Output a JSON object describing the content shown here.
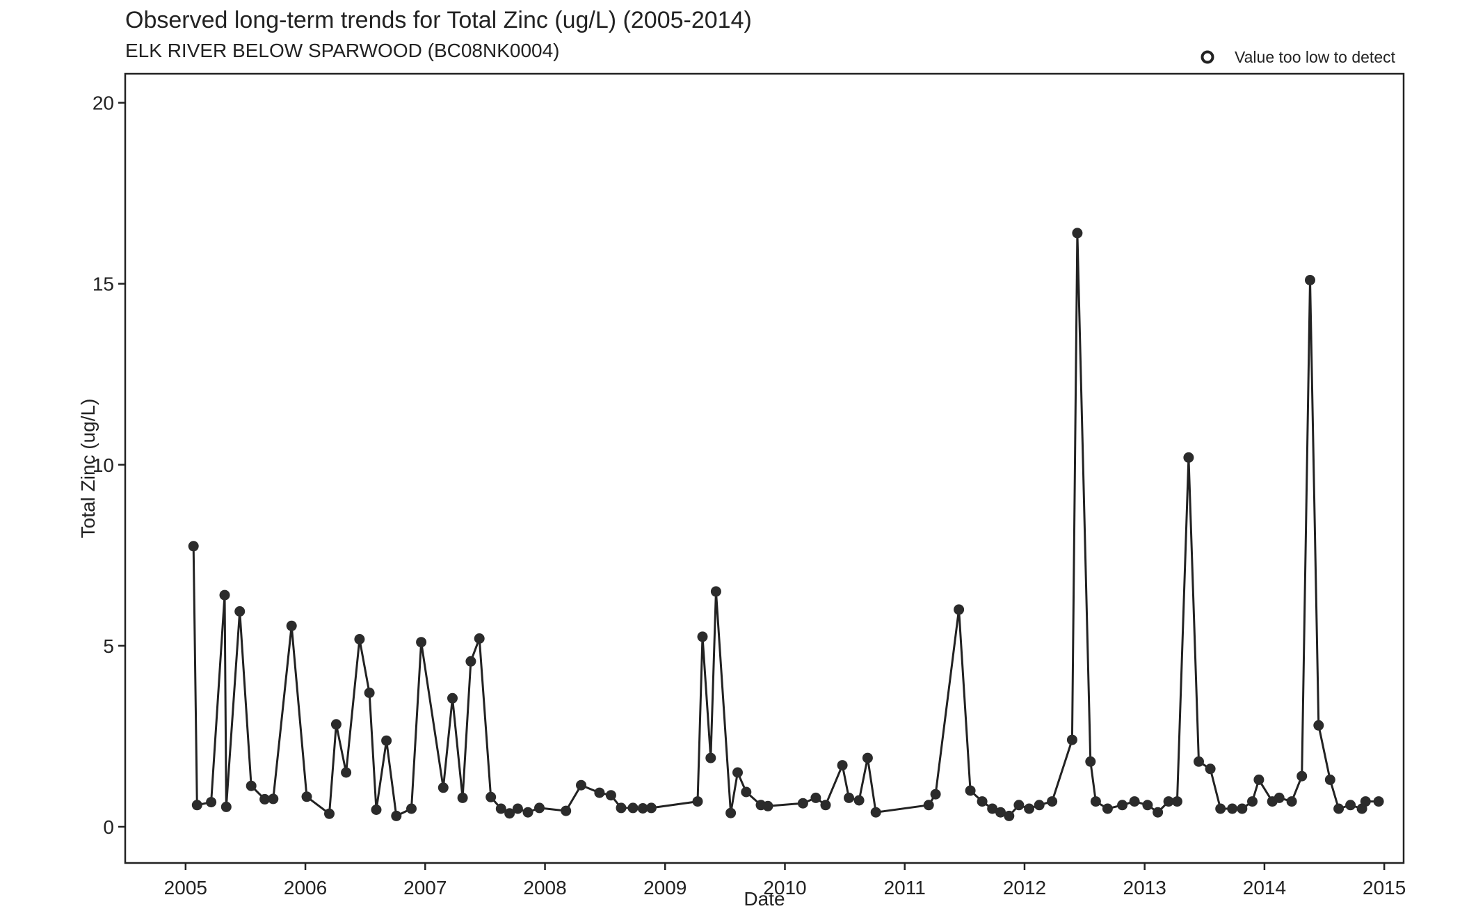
{
  "chart_data": {
    "type": "line",
    "title": "Observed long-term trends for Total Zinc (ug/L) (2005-2014)",
    "subtitle": "ELK RIVER BELOW SPARWOOD (BC08NK0004)",
    "xlabel": "Date",
    "ylabel": "Total Zinc (ug/L)",
    "x_axis_type": "date",
    "xlim": [
      "2004-07-01",
      "2015-03-01"
    ],
    "ylim": [
      -1,
      20.8
    ],
    "x_ticks": [
      "2005",
      "2006",
      "2007",
      "2008",
      "2009",
      "2010",
      "2011",
      "2012",
      "2013",
      "2014",
      "2015"
    ],
    "y_ticks": [
      "0",
      "5",
      "10",
      "15",
      "20"
    ],
    "grid": false,
    "legend": {
      "position": "top-right",
      "entries": [
        {
          "label": "Value too low to detect",
          "marker": "hollow-circle"
        }
      ]
    },
    "line_color": "#222222",
    "point_color": "#2b2b2b",
    "series": [
      {
        "x": [
          "2005-01-25",
          "2005-02-05",
          "2005-03-20",
          "2005-04-30",
          "2005-05-05",
          "2005-06-15",
          "2005-07-20",
          "2005-08-30",
          "2005-09-25",
          "2005-11-20",
          "2006-01-05",
          "2006-03-15",
          "2006-04-05",
          "2006-05-05",
          "2006-06-15",
          "2006-07-15",
          "2006-08-05",
          "2006-09-05",
          "2006-10-05",
          "2006-11-20",
          "2006-12-20",
          "2007-02-25",
          "2007-03-25",
          "2007-04-25",
          "2007-05-20",
          "2007-06-15",
          "2007-07-20",
          "2007-08-20",
          "2007-09-15",
          "2007-10-10",
          "2007-11-10",
          "2007-12-15",
          "2008-03-05",
          "2008-04-20",
          "2008-06-15",
          "2008-07-20",
          "2008-08-20",
          "2008-09-25",
          "2008-10-25",
          "2008-11-20",
          "2009-04-10",
          "2009-04-25",
          "2009-05-20",
          "2009-06-05",
          "2009-07-20",
          "2009-08-10",
          "2009-09-05",
          "2009-10-20",
          "2009-11-10",
          "2010-02-25",
          "2010-04-05",
          "2010-05-05",
          "2010-06-25",
          "2010-07-15",
          "2010-08-15",
          "2010-09-10",
          "2010-10-05",
          "2011-03-15",
          "2011-04-05",
          "2011-06-15",
          "2011-07-20",
          "2011-08-25",
          "2011-09-25",
          "2011-10-20",
          "2011-11-15",
          "2011-12-15",
          "2012-01-15",
          "2012-02-15",
          "2012-03-25",
          "2012-05-25",
          "2012-06-10",
          "2012-07-20",
          "2012-08-05",
          "2012-09-10",
          "2012-10-25",
          "2012-12-01",
          "2013-01-10",
          "2013-02-10",
          "2013-03-15",
          "2013-04-10",
          "2013-05-15",
          "2013-06-15",
          "2013-07-20",
          "2013-08-20",
          "2013-09-25",
          "2013-10-25",
          "2013-11-25",
          "2013-12-15",
          "2014-01-25",
          "2014-02-15",
          "2014-03-25",
          "2014-04-25",
          "2014-05-20",
          "2014-06-15",
          "2014-07-20",
          "2014-08-15",
          "2014-09-20",
          "2014-10-25",
          "2014-11-05",
          "2014-12-15"
        ],
        "y": [
          7.75,
          0.6,
          0.68,
          6.4,
          0.55,
          5.95,
          1.13,
          0.76,
          0.77,
          5.55,
          0.83,
          0.36,
          2.83,
          1.5,
          5.18,
          3.7,
          0.47,
          2.38,
          0.3,
          0.5,
          5.1,
          1.08,
          3.55,
          0.8,
          4.57,
          5.2,
          0.82,
          0.5,
          0.37,
          0.5,
          0.4,
          0.52,
          0.44,
          1.15,
          0.94,
          0.87,
          0.52,
          0.52,
          0.51,
          0.52,
          0.7,
          5.25,
          1.9,
          6.5,
          0.38,
          1.5,
          0.96,
          0.6,
          0.57,
          0.65,
          0.8,
          0.6,
          1.7,
          0.8,
          0.73,
          1.9,
          0.4,
          0.6,
          0.9,
          6.0,
          1.0,
          0.7,
          0.5,
          0.4,
          0.3,
          0.6,
          0.5,
          0.6,
          0.7,
          2.4,
          16.4,
          1.8,
          0.7,
          0.5,
          0.6,
          0.7,
          0.6,
          0.4,
          0.7,
          0.7,
          10.2,
          1.8,
          1.6,
          0.5,
          0.5,
          0.5,
          0.7,
          1.3,
          0.7,
          0.8,
          0.7,
          1.4,
          15.1,
          2.8,
          1.3,
          0.5,
          0.6,
          0.5,
          0.7,
          0.7
        ]
      }
    ]
  }
}
